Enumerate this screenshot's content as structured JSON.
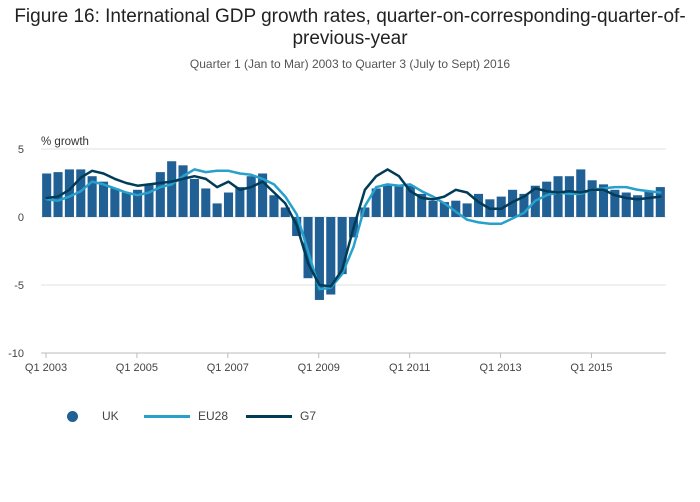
{
  "chart_data": {
    "type": "bar",
    "title": "Figure 16: International GDP growth rates, quarter-on-corresponding-quarter-of-previous-year",
    "subtitle": "Quarter 1 (Jan to Mar) 2003 to Quarter 3 (July to Sept) 2016",
    "ylabel": "% growth",
    "xlabel": "",
    "ylim": [
      -10,
      5
    ],
    "yticks": [
      5,
      0,
      -5,
      -10
    ],
    "xtick_labels": [
      "Q1 2003",
      "Q1 2005",
      "Q1 2007",
      "Q1 2009",
      "Q1 2011",
      "Q1 2013",
      "Q1 2015"
    ],
    "xtick_index": [
      0,
      8,
      16,
      24,
      32,
      40,
      48
    ],
    "grid": true,
    "legend_position": "bottom-left",
    "categories": [
      "Q1 2003",
      "Q2 2003",
      "Q3 2003",
      "Q4 2003",
      "Q1 2004",
      "Q2 2004",
      "Q3 2004",
      "Q4 2004",
      "Q1 2005",
      "Q2 2005",
      "Q3 2005",
      "Q4 2005",
      "Q1 2006",
      "Q2 2006",
      "Q3 2006",
      "Q4 2006",
      "Q1 2007",
      "Q2 2007",
      "Q3 2007",
      "Q4 2007",
      "Q1 2008",
      "Q2 2008",
      "Q3 2008",
      "Q4 2008",
      "Q1 2009",
      "Q2 2009",
      "Q3 2009",
      "Q4 2009",
      "Q1 2010",
      "Q2 2010",
      "Q3 2010",
      "Q4 2010",
      "Q1 2011",
      "Q2 2011",
      "Q3 2011",
      "Q4 2011",
      "Q1 2012",
      "Q2 2012",
      "Q3 2012",
      "Q4 2012",
      "Q1 2013",
      "Q2 2013",
      "Q3 2013",
      "Q4 2013",
      "Q1 2014",
      "Q2 2014",
      "Q3 2014",
      "Q4 2014",
      "Q1 2015",
      "Q2 2015",
      "Q3 2015",
      "Q4 2015",
      "Q1 2016",
      "Q2 2016",
      "Q3 2016"
    ],
    "series": [
      {
        "name": "UK",
        "kind": "bar",
        "color": "#206095",
        "values": [
          3.2,
          3.3,
          3.5,
          3.5,
          3.0,
          2.6,
          2.1,
          1.8,
          2.0,
          2.4,
          3.3,
          4.1,
          3.8,
          2.8,
          2.1,
          1.0,
          1.8,
          2.2,
          3.0,
          3.2,
          1.6,
          0.7,
          -1.4,
          -4.5,
          -6.1,
          -5.7,
          -4.2,
          -1.5,
          0.7,
          2.1,
          2.4,
          2.3,
          2.3,
          1.7,
          1.2,
          1.1,
          1.2,
          1.0,
          1.7,
          1.3,
          1.5,
          2.0,
          1.7,
          2.3,
          2.6,
          3.0,
          3.0,
          3.5,
          2.7,
          2.4,
          2.0,
          1.8,
          1.6,
          1.9,
          2.2
        ]
      },
      {
        "name": "EU28",
        "kind": "line",
        "color": "#27a0cc",
        "values": [
          1.3,
          1.2,
          1.5,
          1.9,
          2.6,
          2.4,
          2.1,
          1.8,
          1.6,
          1.8,
          2.2,
          2.4,
          3.0,
          3.5,
          3.3,
          3.4,
          3.4,
          3.2,
          3.1,
          2.8,
          2.4,
          1.5,
          0.2,
          -2.5,
          -5.3,
          -5.2,
          -4.2,
          -2.2,
          0.8,
          2.2,
          2.4,
          2.3,
          2.4,
          1.9,
          1.5,
          1.0,
          0.4,
          -0.2,
          -0.4,
          -0.5,
          -0.5,
          -0.1,
          0.3,
          1.2,
          1.6,
          1.8,
          1.7,
          1.7,
          2.0,
          2.1,
          2.2,
          2.2,
          2.0,
          1.9,
          1.8
        ]
      },
      {
        "name": "G7",
        "kind": "line",
        "color": "#003c57",
        "values": [
          1.4,
          1.5,
          2.0,
          2.9,
          3.4,
          3.2,
          2.8,
          2.5,
          2.3,
          2.4,
          2.5,
          2.6,
          2.8,
          3.0,
          2.8,
          2.2,
          2.6,
          2.0,
          2.2,
          2.6,
          1.8,
          1.0,
          -0.6,
          -3.4,
          -5.0,
          -5.1,
          -3.9,
          -0.8,
          2.0,
          3.0,
          3.5,
          3.0,
          1.9,
          1.4,
          1.3,
          1.5,
          2.0,
          1.8,
          1.1,
          0.6,
          0.6,
          1.1,
          1.5,
          2.1,
          1.9,
          1.8,
          1.9,
          1.8,
          2.0,
          2.0,
          1.6,
          1.4,
          1.3,
          1.4,
          1.5
        ]
      }
    ]
  }
}
